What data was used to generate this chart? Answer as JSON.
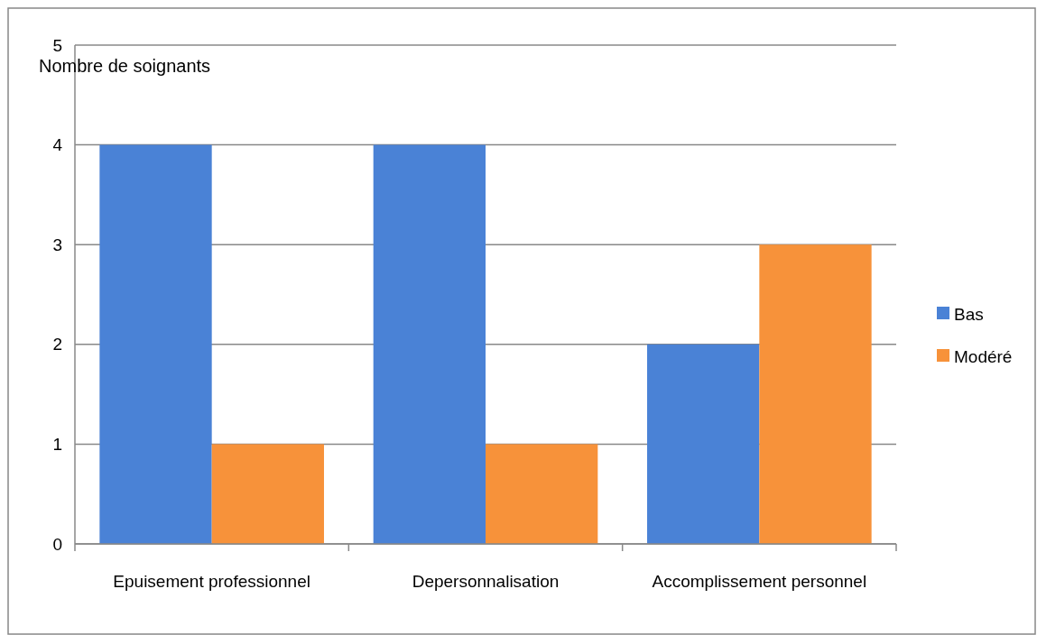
{
  "chart_data": {
    "type": "bar",
    "ylabel": "Nombre de soignants",
    "categories": [
      "Epuisement professionnel",
      "Depersonnalisation",
      "Accomplissement personnel"
    ],
    "series": [
      {
        "name": "Bas",
        "color": "#4a82d6",
        "values": [
          4,
          4,
          2
        ]
      },
      {
        "name": "Modéré",
        "color": "#f7923a",
        "values": [
          1,
          1,
          3
        ]
      }
    ],
    "ylim": [
      0,
      5
    ],
    "yticks": [
      0,
      1,
      2,
      3,
      4,
      5
    ],
    "grid": "y",
    "legend": "right"
  }
}
